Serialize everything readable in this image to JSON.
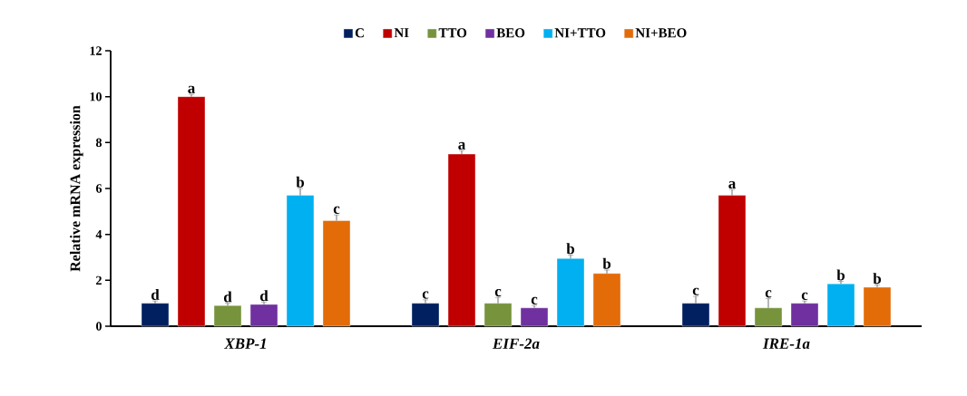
{
  "chart_data": {
    "type": "bar",
    "ylabel": "Relative mRNA expression",
    "categories": [
      "XBP-1",
      "EIF-2a",
      "IRE-1a"
    ],
    "series": [
      {
        "name": "C",
        "color": "#002060",
        "values": [
          1.0,
          1.0,
          1.0
        ],
        "errors": [
          0.1,
          0.15,
          0.3
        ],
        "value_labels": [
          "d",
          "c",
          "c"
        ]
      },
      {
        "name": "NI",
        "color": "#c00000",
        "values": [
          10.0,
          7.5,
          5.7
        ],
        "errors": [
          0.1,
          0.15,
          0.25
        ],
        "value_labels": [
          "a",
          "a",
          "a"
        ]
      },
      {
        "name": "TTO",
        "color": "#77933c",
        "values": [
          0.9,
          1.0,
          0.8
        ],
        "errors": [
          0.1,
          0.25,
          0.4
        ],
        "value_labels": [
          "d",
          "c",
          "c"
        ]
      },
      {
        "name": "BEO",
        "color": "#7030a0",
        "values": [
          0.95,
          0.8,
          1.0
        ],
        "errors": [
          0.1,
          0.1,
          0.1
        ],
        "value_labels": [
          "d",
          "c",
          "c"
        ]
      },
      {
        "name": "NI+TTO",
        "color": "#00b0f0",
        "values": [
          5.7,
          2.95,
          1.85
        ],
        "errors": [
          0.3,
          0.15,
          0.1
        ],
        "value_labels": [
          "b",
          "b",
          "b"
        ]
      },
      {
        "name": "NI+BEO",
        "color": "#e36c09",
        "values": [
          4.6,
          2.3,
          1.7
        ],
        "errors": [
          0.25,
          0.15,
          0.1
        ],
        "value_labels": [
          "c",
          "b",
          "b"
        ]
      }
    ],
    "ylim": [
      0,
      12
    ],
    "yticks": [
      0,
      2,
      4,
      6,
      8,
      10,
      12
    ],
    "grid": false,
    "legend": "top"
  }
}
